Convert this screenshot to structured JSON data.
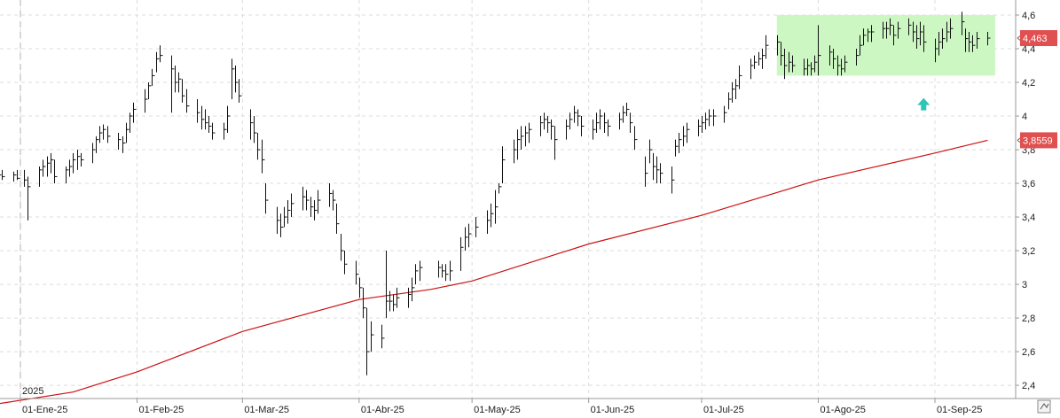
{
  "chart_data": {
    "type": "ohlc",
    "y_ticks": [
      "4,6",
      "4,4",
      "4,2",
      "4",
      "3,8",
      "3,6",
      "3,4",
      "3,2",
      "3",
      "2,8",
      "2,6",
      "2,4"
    ],
    "y_tick_values": [
      4.6,
      4.4,
      4.2,
      4.0,
      3.8,
      3.6,
      3.4,
      3.2,
      3.0,
      2.8,
      2.6,
      2.4
    ],
    "ylim": [
      2.29,
      4.66
    ],
    "grid": true,
    "x_ticks": [
      {
        "label": "01-Ene-25",
        "date": "2025-01-01"
      },
      {
        "label": "01-Feb-25",
        "date": "2025-02-01"
      },
      {
        "label": "01-Mar-25",
        "date": "2025-03-01"
      },
      {
        "label": "01-Abr-25",
        "date": "2025-04-01"
      },
      {
        "label": "01-May-25",
        "date": "2025-05-01"
      },
      {
        "label": "01-Jun-25",
        "date": "2025-06-01"
      },
      {
        "label": "01-Jul-25",
        "date": "2025-07-01"
      },
      {
        "label": "01-Ago-25",
        "date": "2025-08-01"
      },
      {
        "label": "01-Sep-25",
        "date": "2025-09-01"
      }
    ],
    "year_marker": {
      "label": "2025",
      "date": "2025-01-01"
    },
    "price_series": {
      "color": "#111111",
      "points": [
        [
          "2024-12-26",
          3.67,
          3.62,
          3.65
        ],
        [
          "2024-12-27",
          3.68,
          3.62,
          3.64
        ],
        [
          "2024-12-30",
          3.67,
          3.61,
          3.65
        ],
        [
          "2024-12-31",
          3.68,
          3.62,
          3.63
        ],
        [
          "2025-01-02",
          3.68,
          3.58,
          3.62
        ],
        [
          "2025-01-03",
          3.64,
          3.38,
          3.58
        ],
        [
          "2025-01-06",
          3.7,
          3.58,
          3.68
        ],
        [
          "2025-01-07",
          3.74,
          3.64,
          3.7
        ],
        [
          "2025-01-08",
          3.76,
          3.64,
          3.72
        ],
        [
          "2025-01-09",
          3.78,
          3.66,
          3.74
        ],
        [
          "2025-01-10",
          3.74,
          3.6,
          3.64
        ],
        [
          "2025-01-13",
          3.7,
          3.6,
          3.68
        ],
        [
          "2025-01-14",
          3.74,
          3.64,
          3.7
        ],
        [
          "2025-01-15",
          3.78,
          3.66,
          3.74
        ],
        [
          "2025-01-16",
          3.8,
          3.68,
          3.76
        ],
        [
          "2025-01-17",
          3.78,
          3.7,
          3.74
        ],
        [
          "2025-01-20",
          3.84,
          3.72,
          3.8
        ],
        [
          "2025-01-21",
          3.88,
          3.78,
          3.86
        ],
        [
          "2025-01-22",
          3.94,
          3.84,
          3.9
        ],
        [
          "2025-01-23",
          3.95,
          3.86,
          3.92
        ],
        [
          "2025-01-24",
          3.94,
          3.84,
          3.88
        ],
        [
          "2025-01-27",
          3.9,
          3.8,
          3.86
        ],
        [
          "2025-01-28",
          3.88,
          3.78,
          3.84
        ],
        [
          "2025-01-29",
          3.96,
          3.84,
          3.92
        ],
        [
          "2025-01-30",
          4.02,
          3.9,
          4.0
        ],
        [
          "2025-01-31",
          4.08,
          3.96,
          4.04
        ],
        [
          "2025-02-03",
          4.16,
          4.02,
          4.1
        ],
        [
          "2025-02-04",
          4.2,
          4.1,
          4.18
        ],
        [
          "2025-02-05",
          4.28,
          4.18,
          4.24
        ],
        [
          "2025-02-06",
          4.38,
          4.26,
          4.34
        ],
        [
          "2025-02-07",
          4.42,
          4.32,
          4.36
        ],
        [
          "2025-02-10",
          4.36,
          4.02,
          4.28
        ],
        [
          "2025-02-11",
          4.3,
          4.14,
          4.2
        ],
        [
          "2025-02-12",
          4.26,
          4.14,
          4.22
        ],
        [
          "2025-02-13",
          4.22,
          4.08,
          4.12
        ],
        [
          "2025-02-14",
          4.16,
          4.02,
          4.06
        ],
        [
          "2025-02-17",
          4.1,
          3.96,
          4.02
        ],
        [
          "2025-02-18",
          4.06,
          3.92,
          3.98
        ],
        [
          "2025-02-19",
          4.04,
          3.92,
          3.96
        ],
        [
          "2025-02-20",
          4.0,
          3.9,
          3.94
        ],
        [
          "2025-02-21",
          3.96,
          3.86,
          3.9
        ],
        [
          "2025-02-24",
          3.96,
          3.86,
          3.92
        ],
        [
          "2025-02-25",
          4.06,
          3.9,
          4.0
        ],
        [
          "2025-02-26",
          4.34,
          4.1,
          4.28
        ],
        [
          "2025-02-27",
          4.3,
          4.14,
          4.2
        ],
        [
          "2025-02-28",
          4.22,
          4.08,
          4.12
        ],
        [
          "2025-03-03",
          4.04,
          3.86,
          3.96
        ],
        [
          "2025-03-04",
          4.0,
          3.84,
          3.9
        ],
        [
          "2025-03-05",
          3.9,
          3.74,
          3.8
        ],
        [
          "2025-03-06",
          3.86,
          3.66,
          3.74
        ],
        [
          "2025-03-07",
          3.6,
          3.42,
          3.5
        ],
        [
          "2025-03-10",
          3.46,
          3.3,
          3.38
        ],
        [
          "2025-03-11",
          3.42,
          3.28,
          3.34
        ],
        [
          "2025-03-12",
          3.46,
          3.34,
          3.4
        ],
        [
          "2025-03-13",
          3.5,
          3.36,
          3.44
        ],
        [
          "2025-03-14",
          3.54,
          3.4,
          3.48
        ],
        [
          "2025-03-17",
          3.58,
          3.44,
          3.52
        ],
        [
          "2025-03-18",
          3.56,
          3.44,
          3.5
        ],
        [
          "2025-03-19",
          3.52,
          3.4,
          3.46
        ],
        [
          "2025-03-20",
          3.5,
          3.38,
          3.44
        ],
        [
          "2025-03-21",
          3.56,
          3.42,
          3.5
        ],
        [
          "2025-03-24",
          3.6,
          3.46,
          3.54
        ],
        [
          "2025-03-25",
          3.56,
          3.44,
          3.5
        ],
        [
          "2025-03-26",
          3.48,
          3.3,
          3.36
        ],
        [
          "2025-03-27",
          3.3,
          3.14,
          3.2
        ],
        [
          "2025-03-28",
          3.2,
          3.06,
          3.12
        ],
        [
          "2025-03-31",
          3.14,
          3.0,
          3.06
        ],
        [
          "2025-04-01",
          3.04,
          2.92,
          2.98
        ],
        [
          "2025-04-02",
          2.98,
          2.8,
          2.86
        ],
        [
          "2025-04-03",
          2.86,
          2.46,
          2.6
        ],
        [
          "2025-04-04",
          2.78,
          2.6,
          2.7
        ],
        [
          "2025-04-07",
          2.76,
          2.62,
          2.68
        ],
        [
          "2025-04-08",
          3.2,
          2.8,
          2.9
        ],
        [
          "2025-04-09",
          2.96,
          2.84,
          2.9
        ],
        [
          "2025-04-10",
          2.94,
          2.84,
          2.88
        ],
        [
          "2025-04-11",
          2.98,
          2.86,
          2.92
        ],
        [
          "2025-04-14",
          2.98,
          2.86,
          2.94
        ],
        [
          "2025-04-15",
          3.04,
          2.9,
          2.98
        ],
        [
          "2025-04-16",
          3.12,
          3.0,
          3.08
        ],
        [
          "2025-04-17",
          3.14,
          3.02,
          3.1
        ],
        [
          "2025-04-22",
          3.14,
          3.04,
          3.1
        ],
        [
          "2025-04-23",
          3.12,
          3.04,
          3.08
        ],
        [
          "2025-04-24",
          3.12,
          3.02,
          3.06
        ],
        [
          "2025-04-25",
          3.14,
          3.02,
          3.08
        ],
        [
          "2025-04-28",
          3.28,
          3.08,
          3.22
        ],
        [
          "2025-04-29",
          3.34,
          3.2,
          3.28
        ],
        [
          "2025-04-30",
          3.36,
          3.22,
          3.3
        ],
        [
          "2025-05-02",
          3.4,
          3.28,
          3.34
        ],
        [
          "2025-05-05",
          3.44,
          3.3,
          3.38
        ],
        [
          "2025-05-06",
          3.48,
          3.34,
          3.42
        ],
        [
          "2025-05-07",
          3.56,
          3.36,
          3.46
        ],
        [
          "2025-05-08",
          3.6,
          3.54,
          3.58
        ],
        [
          "2025-05-09",
          3.82,
          3.6,
          3.74
        ],
        [
          "2025-05-12",
          3.86,
          3.72,
          3.8
        ],
        [
          "2025-05-13",
          3.92,
          3.74,
          3.86
        ],
        [
          "2025-05-14",
          3.94,
          3.8,
          3.88
        ],
        [
          "2025-05-15",
          3.94,
          3.82,
          3.9
        ],
        [
          "2025-05-16",
          3.96,
          3.84,
          3.92
        ],
        [
          "2025-05-19",
          4.0,
          3.88,
          3.96
        ],
        [
          "2025-05-20",
          4.02,
          3.92,
          3.98
        ],
        [
          "2025-05-21",
          4.0,
          3.9,
          3.96
        ],
        [
          "2025-05-22",
          3.98,
          3.86,
          3.94
        ],
        [
          "2025-05-23",
          3.94,
          3.74,
          3.86
        ],
        [
          "2025-05-26",
          3.98,
          3.86,
          3.94
        ],
        [
          "2025-05-27",
          4.02,
          3.92,
          3.98
        ],
        [
          "2025-05-28",
          4.06,
          3.96,
          4.02
        ],
        [
          "2025-05-29",
          4.04,
          3.94,
          4.0
        ],
        [
          "2025-05-30",
          4.0,
          3.88,
          3.94
        ],
        [
          "2025-06-02",
          3.98,
          3.86,
          3.92
        ],
        [
          "2025-06-03",
          4.02,
          3.9,
          3.96
        ],
        [
          "2025-06-04",
          4.04,
          3.92,
          4.0
        ],
        [
          "2025-06-05",
          4.02,
          3.9,
          3.96
        ],
        [
          "2025-06-06",
          3.98,
          3.88,
          3.94
        ],
        [
          "2025-06-09",
          4.02,
          3.92,
          3.98
        ],
        [
          "2025-06-10",
          4.06,
          3.96,
          4.02
        ],
        [
          "2025-06-11",
          4.08,
          4.0,
          4.04
        ],
        [
          "2025-06-12",
          4.02,
          3.9,
          3.96
        ],
        [
          "2025-06-13",
          3.94,
          3.8,
          3.86
        ],
        [
          "2025-06-16",
          3.76,
          3.58,
          3.66
        ],
        [
          "2025-06-17",
          3.86,
          3.72,
          3.8
        ],
        [
          "2025-06-18",
          3.78,
          3.62,
          3.7
        ],
        [
          "2025-06-19",
          3.76,
          3.6,
          3.68
        ],
        [
          "2025-06-20",
          3.72,
          3.6,
          3.66
        ],
        [
          "2025-06-23",
          3.7,
          3.54,
          3.62
        ],
        [
          "2025-06-24",
          3.86,
          3.76,
          3.82
        ],
        [
          "2025-06-25",
          3.9,
          3.78,
          3.86
        ],
        [
          "2025-06-26",
          3.94,
          3.82,
          3.88
        ],
        [
          "2025-06-27",
          3.96,
          3.84,
          3.92
        ],
        [
          "2025-06-30",
          3.98,
          3.88,
          3.94
        ],
        [
          "2025-07-01",
          4.0,
          3.9,
          3.96
        ],
        [
          "2025-07-02",
          4.02,
          3.92,
          3.98
        ],
        [
          "2025-07-03",
          4.04,
          3.94,
          4.0
        ],
        [
          "2025-07-04",
          4.04,
          3.94,
          4.0
        ],
        [
          "2025-07-07",
          4.06,
          3.96,
          4.02
        ],
        [
          "2025-07-08",
          4.14,
          4.04,
          4.1
        ],
        [
          "2025-07-09",
          4.2,
          4.08,
          4.16
        ],
        [
          "2025-07-10",
          4.22,
          4.1,
          4.18
        ],
        [
          "2025-07-11",
          4.3,
          4.16,
          4.24
        ],
        [
          "2025-07-14",
          4.34,
          4.22,
          4.3
        ],
        [
          "2025-07-15",
          4.36,
          4.28,
          4.32
        ],
        [
          "2025-07-16",
          4.38,
          4.3,
          4.34
        ],
        [
          "2025-07-17",
          4.4,
          4.28,
          4.36
        ],
        [
          "2025-07-18",
          4.48,
          4.34,
          4.42
        ],
        [
          "2025-07-21",
          4.48,
          4.36,
          4.44
        ],
        [
          "2025-07-22",
          4.44,
          4.3,
          4.36
        ],
        [
          "2025-07-23",
          4.4,
          4.22,
          4.3
        ],
        [
          "2025-07-24",
          4.38,
          4.26,
          4.32
        ],
        [
          "2025-07-25",
          4.36,
          4.26,
          4.3
        ],
        [
          "2025-07-28",
          4.34,
          4.24,
          4.28
        ],
        [
          "2025-07-29",
          4.34,
          4.24,
          4.3
        ],
        [
          "2025-07-30",
          4.32,
          4.24,
          4.28
        ],
        [
          "2025-07-31",
          4.36,
          4.26,
          4.32
        ],
        [
          "2025-08-01",
          4.54,
          4.24,
          4.36
        ],
        [
          "2025-08-04",
          4.42,
          4.3,
          4.38
        ],
        [
          "2025-08-05",
          4.4,
          4.28,
          4.34
        ],
        [
          "2025-08-06",
          4.36,
          4.24,
          4.3
        ],
        [
          "2025-08-07",
          4.34,
          4.24,
          4.28
        ],
        [
          "2025-08-08",
          4.36,
          4.26,
          4.32
        ],
        [
          "2025-08-11",
          4.4,
          4.3,
          4.36
        ],
        [
          "2025-08-12",
          4.48,
          4.36,
          4.42
        ],
        [
          "2025-08-13",
          4.52,
          4.42,
          4.48
        ],
        [
          "2025-08-14",
          4.52,
          4.44,
          4.5
        ],
        [
          "2025-08-15",
          4.54,
          4.44,
          4.5
        ],
        [
          "2025-08-18",
          4.56,
          4.46,
          4.52
        ],
        [
          "2025-08-19",
          4.56,
          4.46,
          4.52
        ],
        [
          "2025-08-20",
          4.58,
          4.48,
          4.54
        ],
        [
          "2025-08-21",
          4.54,
          4.42,
          4.48
        ],
        [
          "2025-08-22",
          4.56,
          4.46,
          4.52
        ],
        [
          "2025-08-25",
          4.58,
          4.48,
          4.54
        ],
        [
          "2025-08-26",
          4.56,
          4.44,
          4.5
        ],
        [
          "2025-08-27",
          4.54,
          4.4,
          4.46
        ],
        [
          "2025-08-28",
          4.56,
          4.42,
          4.5
        ],
        [
          "2025-08-29",
          4.54,
          4.38,
          4.44
        ],
        [
          "2025-09-01",
          4.46,
          4.32,
          4.4
        ],
        [
          "2025-09-02",
          4.5,
          4.36,
          4.44
        ],
        [
          "2025-09-03",
          4.52,
          4.4,
          4.46
        ],
        [
          "2025-09-04",
          4.56,
          4.44,
          4.5
        ],
        [
          "2025-09-05",
          4.58,
          4.46,
          4.52
        ],
        [
          "2025-09-08",
          4.62,
          4.48,
          4.56
        ],
        [
          "2025-09-09",
          4.52,
          4.38,
          4.46
        ],
        [
          "2025-09-10",
          4.5,
          4.38,
          4.44
        ],
        [
          "2025-09-11",
          4.48,
          4.38,
          4.42
        ],
        [
          "2025-09-12",
          4.5,
          4.4,
          4.46
        ],
        [
          "2025-09-15",
          4.5,
          4.42,
          4.463
        ]
      ]
    },
    "moving_average": {
      "color": "#cc1111",
      "points": [
        [
          "2024-12-26",
          2.29
        ],
        [
          "2025-01-15",
          2.36
        ],
        [
          "2025-02-01",
          2.48
        ],
        [
          "2025-03-01",
          2.72
        ],
        [
          "2025-04-01",
          2.91
        ],
        [
          "2025-04-20",
          2.97
        ],
        [
          "2025-05-01",
          3.02
        ],
        [
          "2025-06-01",
          3.24
        ],
        [
          "2025-07-01",
          3.41
        ],
        [
          "2025-08-01",
          3.62
        ],
        [
          "2025-09-01",
          3.78
        ],
        [
          "2025-09-15",
          3.8559
        ]
      ]
    },
    "highlight_zone": {
      "date_from": "2025-07-21",
      "date_to": "2025-09-17",
      "y_from": 4.24,
      "y_to": 4.6,
      "color": "#ccf7c2"
    },
    "arrow_marker": {
      "date": "2025-08-29",
      "value": 4.06,
      "direction": "up",
      "color": "#2ec4b6"
    },
    "last_price": {
      "value": 4.463,
      "label": "4,463",
      "color": "#e05050"
    },
    "last_ma": {
      "value": 3.8559,
      "label": "3,8559",
      "color": "#e05050"
    }
  },
  "toolbar": {
    "icon": "scale-toggle-icon"
  }
}
